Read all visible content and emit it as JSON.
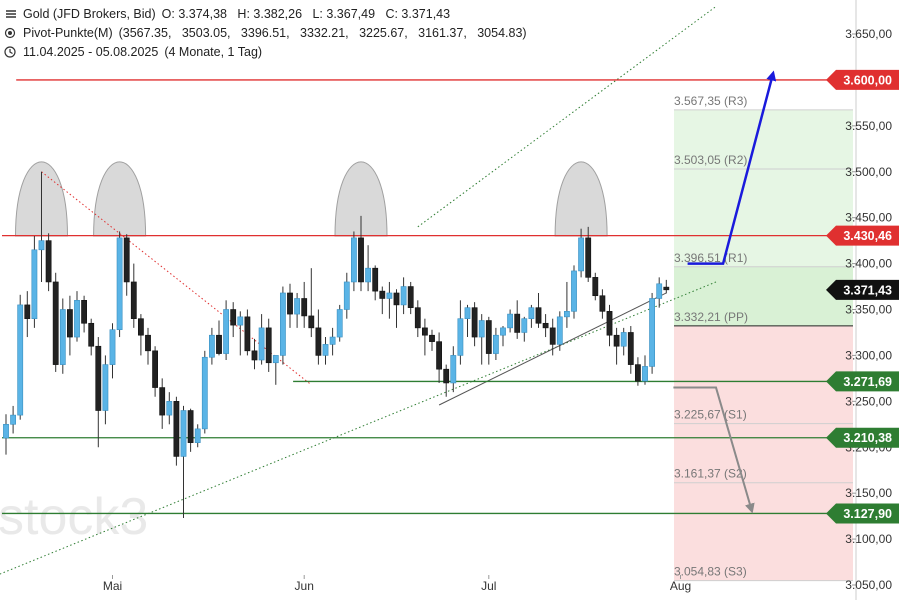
{
  "header": {
    "instrument": "Gold (JFD Brokers, Bid)",
    "ohlc": "O: 3.374,38   H: 3.382,26   L: 3.367,49   C: 3.371,43",
    "pivot_label": "Pivot-Punkte(M)",
    "pivot_values": "(3567.35,   3503.05,   3396.51,   3332.21,   3225.67,   3161.37,   3054.83)",
    "date_range": "11.04.2025 - 05.08.2025",
    "period": "(4 Monate, 1 Tag)"
  },
  "watermark": "stock3",
  "colors": {
    "bull": "#5ab4e6",
    "bear": "#222222",
    "resistance": "#e03030",
    "support": "#2e7d32",
    "current": "#111111",
    "arrow_up": "#1a1adc",
    "arrow_down": "#8a8a8a",
    "pivot_green_bg": "#e6f6e4",
    "pivot_red_bg": "#fbdede"
  },
  "chart_data": {
    "type": "candlestick",
    "y_axis": {
      "min": 3040,
      "max": 3670,
      "ticks": [
        3050,
        3100,
        3150,
        3200,
        3250,
        3300,
        3350,
        3400,
        3450,
        3500,
        3550,
        3600,
        3650
      ],
      "tick_labels": [
        "3.050,00",
        "3.100,00",
        "3.150,00",
        "3.200,00",
        "3.250,00",
        "3.300,00",
        "3.350,00",
        "3.400,00",
        "3.450,00",
        "3.500,00",
        "3.550,00",
        "3.600,00",
        "3.650,00"
      ]
    },
    "x_axis": {
      "labels": [
        {
          "label": "Mai",
          "index": 15
        },
        {
          "label": "Jun",
          "index": 42
        },
        {
          "label": "Jul",
          "index": 68
        },
        {
          "label": "Aug",
          "index": 95
        }
      ]
    },
    "candles": [
      [
        3210,
        3236,
        3192,
        3225
      ],
      [
        3225,
        3245,
        3215,
        3235
      ],
      [
        3235,
        3366,
        3230,
        3355
      ],
      [
        3355,
        3370,
        3320,
        3340
      ],
      [
        3340,
        3430,
        3330,
        3415
      ],
      [
        3415,
        3500,
        3380,
        3425
      ],
      [
        3425,
        3433,
        3370,
        3380
      ],
      [
        3380,
        3390,
        3282,
        3290
      ],
      [
        3290,
        3362,
        3280,
        3350
      ],
      [
        3350,
        3365,
        3300,
        3320
      ],
      [
        3320,
        3370,
        3315,
        3360
      ],
      [
        3360,
        3365,
        3325,
        3335
      ],
      [
        3335,
        3340,
        3300,
        3310
      ],
      [
        3310,
        3320,
        3200,
        3240
      ],
      [
        3240,
        3300,
        3225,
        3290
      ],
      [
        3290,
        3335,
        3275,
        3328
      ],
      [
        3328,
        3435,
        3320,
        3428
      ],
      [
        3428,
        3432,
        3365,
        3380
      ],
      [
        3380,
        3400,
        3330,
        3340
      ],
      [
        3340,
        3345,
        3300,
        3322
      ],
      [
        3322,
        3330,
        3290,
        3305
      ],
      [
        3305,
        3310,
        3255,
        3265
      ],
      [
        3265,
        3275,
        3220,
        3235
      ],
      [
        3235,
        3260,
        3225,
        3250
      ],
      [
        3250,
        3255,
        3180,
        3190
      ],
      [
        3190,
        3245,
        3123,
        3240
      ],
      [
        3240,
        3242,
        3195,
        3205
      ],
      [
        3205,
        3225,
        3200,
        3220
      ],
      [
        3220,
        3305,
        3215,
        3298
      ],
      [
        3298,
        3330,
        3290,
        3322
      ],
      [
        3322,
        3338,
        3300,
        3302
      ],
      [
        3302,
        3360,
        3295,
        3350
      ],
      [
        3350,
        3358,
        3320,
        3333
      ],
      [
        3333,
        3348,
        3300,
        3342
      ],
      [
        3342,
        3350,
        3300,
        3305
      ],
      [
        3305,
        3318,
        3285,
        3295
      ],
      [
        3295,
        3345,
        3290,
        3330
      ],
      [
        3330,
        3340,
        3282,
        3292
      ],
      [
        3292,
        3300,
        3268,
        3300
      ],
      [
        3300,
        3375,
        3290,
        3368
      ],
      [
        3368,
        3378,
        3330,
        3345
      ],
      [
        3345,
        3368,
        3330,
        3362
      ],
      [
        3362,
        3380,
        3330,
        3343
      ],
      [
        3343,
        3395,
        3320,
        3330
      ],
      [
        3330,
        3350,
        3290,
        3300
      ],
      [
        3300,
        3320,
        3290,
        3312
      ],
      [
        3312,
        3330,
        3300,
        3320
      ],
      [
        3320,
        3355,
        3315,
        3350
      ],
      [
        3350,
        3390,
        3340,
        3380
      ],
      [
        3380,
        3435,
        3370,
        3428
      ],
      [
        3428,
        3452,
        3370,
        3380
      ],
      [
        3380,
        3420,
        3370,
        3395
      ],
      [
        3395,
        3398,
        3360,
        3370
      ],
      [
        3370,
        3375,
        3345,
        3362
      ],
      [
        3362,
        3380,
        3340,
        3368
      ],
      [
        3368,
        3372,
        3330,
        3355
      ],
      [
        3355,
        3385,
        3345,
        3375
      ],
      [
        3375,
        3380,
        3345,
        3352
      ],
      [
        3352,
        3360,
        3320,
        3330
      ],
      [
        3330,
        3340,
        3300,
        3322
      ],
      [
        3322,
        3328,
        3305,
        3315
      ],
      [
        3315,
        3325,
        3270,
        3285
      ],
      [
        3285,
        3290,
        3255,
        3270
      ],
      [
        3270,
        3310,
        3260,
        3300
      ],
      [
        3300,
        3360,
        3290,
        3340
      ],
      [
        3340,
        3355,
        3320,
        3352
      ],
      [
        3352,
        3358,
        3310,
        3320
      ],
      [
        3320,
        3345,
        3290,
        3338
      ],
      [
        3338,
        3342,
        3290,
        3302
      ],
      [
        3302,
        3330,
        3295,
        3322
      ],
      [
        3322,
        3332,
        3310,
        3330
      ],
      [
        3330,
        3350,
        3325,
        3345
      ],
      [
        3345,
        3360,
        3318,
        3325
      ],
      [
        3325,
        3342,
        3315,
        3340
      ],
      [
        3340,
        3355,
        3330,
        3352
      ],
      [
        3352,
        3368,
        3330,
        3335
      ],
      [
        3335,
        3345,
        3320,
        3330
      ],
      [
        3330,
        3340,
        3300,
        3312
      ],
      [
        3312,
        3348,
        3305,
        3342
      ],
      [
        3342,
        3380,
        3330,
        3348
      ],
      [
        3348,
        3398,
        3340,
        3392
      ],
      [
        3392,
        3438,
        3385,
        3428
      ],
      [
        3428,
        3440,
        3380,
        3385
      ],
      [
        3385,
        3390,
        3360,
        3365
      ],
      [
        3365,
        3372,
        3340,
        3348
      ],
      [
        3348,
        3355,
        3310,
        3322
      ],
      [
        3322,
        3330,
        3290,
        3310
      ],
      [
        3310,
        3330,
        3300,
        3325
      ],
      [
        3325,
        3332,
        3280,
        3290
      ],
      [
        3290,
        3298,
        3267,
        3272
      ],
      [
        3272,
        3300,
        3268,
        3288
      ],
      [
        3288,
        3368,
        3280,
        3362
      ],
      [
        3362,
        3385,
        3352,
        3378
      ],
      [
        3374.38,
        3382.26,
        3367.49,
        3371.43
      ]
    ],
    "horizontal_lines": [
      {
        "value": 3600.0,
        "label": "3.600,00",
        "color": "#e03030",
        "x_start_index": 2
      },
      {
        "value": 3430.46,
        "label": "3.430,46",
        "color": "#e03030",
        "x_start_index": 0
      },
      {
        "value": 3371.43,
        "label": "3.371,43",
        "color": "#111111",
        "x_start_index": 0,
        "current": true
      },
      {
        "value": 3271.69,
        "label": "3.271,69",
        "color": "#2e7d32",
        "x_start_index": 41
      },
      {
        "value": 3210.38,
        "label": "3.210,38",
        "color": "#2e7d32",
        "x_start_index": 0
      },
      {
        "value": 3127.9,
        "label": "3.127,90",
        "color": "#2e7d32",
        "x_start_index": 0
      }
    ],
    "pivots": [
      {
        "name": "R3",
        "value": 3567.35,
        "label": "3.567,35 (R3)"
      },
      {
        "name": "R2",
        "value": 3503.05,
        "label": "3.503,05 (R2)"
      },
      {
        "name": "R1",
        "value": 3396.51,
        "label": "3.396,51 (R1)"
      },
      {
        "name": "PP",
        "value": 3332.21,
        "label": "3.332,21 (PP)"
      },
      {
        "name": "S1",
        "value": 3225.67,
        "label": "3.225,67 (S1)"
      },
      {
        "name": "S2",
        "value": 3161.37,
        "label": "3.161,37 (S2)"
      },
      {
        "name": "S3",
        "value": 3054.83,
        "label": "3.054,83 (S3)"
      }
    ],
    "trend_lines": [
      {
        "name": "channel-lower",
        "style": "dotted",
        "color": "#2e7d32",
        "from": [
          -4,
          3052
        ],
        "to": [
          100,
          3380
        ]
      },
      {
        "name": "channel-upper",
        "style": "dotted",
        "color": "#2e7d32",
        "from": [
          58,
          3440
        ],
        "to": [
          100,
          3680
        ]
      },
      {
        "name": "resistance-falling",
        "style": "dotted",
        "color": "#e03030",
        "from": [
          5,
          3500
        ],
        "to": [
          43,
          3268
        ]
      },
      {
        "name": "support-rising",
        "style": "solid",
        "color": "#555555",
        "from": [
          61,
          3246
        ],
        "to": [
          93,
          3368
        ]
      }
    ],
    "arcs": [
      {
        "index_center": 5,
        "base": 3430,
        "peak": 3518
      },
      {
        "index_center": 16,
        "base": 3430,
        "peak": 3518
      },
      {
        "index_center": 50,
        "base": 3430,
        "peak": 3518
      },
      {
        "index_center": 81,
        "base": 3430,
        "peak": 3518
      }
    ],
    "scenario_up": [
      [
        96,
        3400
      ],
      [
        101,
        3400
      ],
      [
        108,
        3606
      ]
    ],
    "scenario_down": [
      [
        94,
        3265
      ],
      [
        100,
        3265
      ],
      [
        105,
        3132
      ]
    ]
  }
}
